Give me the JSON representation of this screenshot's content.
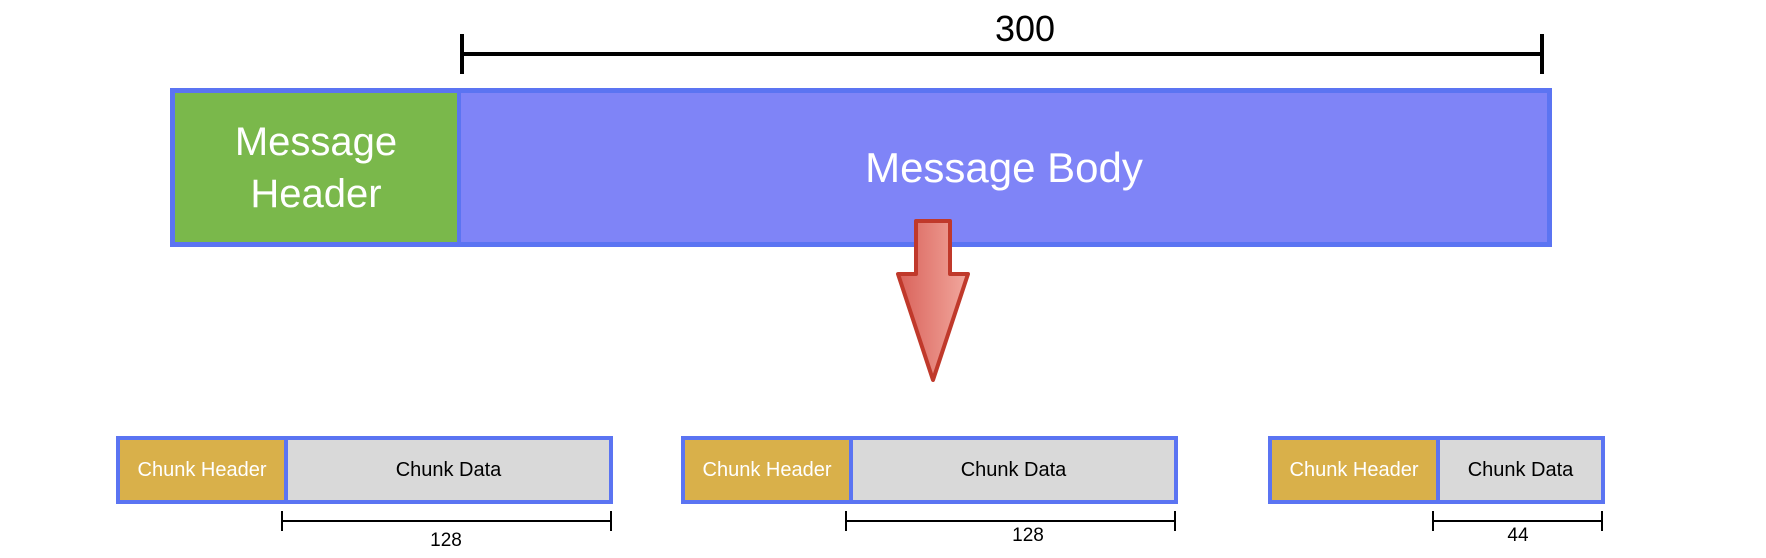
{
  "message": {
    "total_label": "300",
    "header_label": "Message Header",
    "body_label": "Message Body"
  },
  "chunks": [
    {
      "header_label": "Chunk Header",
      "data_label": "Chunk Data",
      "size_label": "128"
    },
    {
      "header_label": "Chunk Header",
      "data_label": "Chunk Data",
      "size_label": "128"
    },
    {
      "header_label": "Chunk Header",
      "data_label": "Chunk Data",
      "size_label": "44"
    }
  ],
  "colors": {
    "border": "#5b74f2",
    "message_header": "#7ab84b",
    "message_body": "#7f84f7",
    "chunk_header": "#d9b04a",
    "chunk_data": "#d9d9d9",
    "arrow_fill": "#e8837a",
    "arrow_stroke": "#c0392b"
  },
  "icons": {
    "split_arrow": "down-arrow-icon"
  }
}
